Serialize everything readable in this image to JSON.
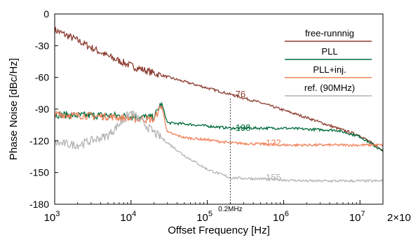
{
  "chart_data": {
    "type": "line",
    "xlabel": "Offset Frequency [Hz]",
    "ylabel": "Phase Noise [dBc/Hz]",
    "x_scale": "log",
    "xlim": [
      1000,
      20000000
    ],
    "ylim": [
      -180,
      0
    ],
    "x_ticks": [
      {
        "value": 1000,
        "base": "10",
        "exp": "3"
      },
      {
        "value": 10000,
        "base": "10",
        "exp": "4"
      },
      {
        "value": 100000,
        "base": "10",
        "exp": "5"
      },
      {
        "value": 1000000,
        "base": "10",
        "exp": "6"
      },
      {
        "value": 10000000,
        "base": "10",
        "exp": "7"
      },
      {
        "value": 20000000,
        "base": "2×10",
        "exp": "7"
      }
    ],
    "y_ticks": [
      0,
      -30,
      -60,
      -90,
      -120,
      -150,
      -180
    ],
    "y_tick_labels": [
      "0",
      "-30",
      "-60",
      "-90",
      "-120",
      "-150",
      "-180"
    ],
    "grid": false,
    "legend_position": "top-right",
    "marker": {
      "x": 200000,
      "label": "0.2MHz"
    },
    "series": [
      {
        "name": "free-runnnig",
        "color": "#8b3a2e",
        "points": [
          [
            1000,
            -15
          ],
          [
            2000,
            -25
          ],
          [
            5000,
            -40
          ],
          [
            10000,
            -49
          ],
          [
            20000,
            -56
          ],
          [
            50000,
            -64
          ],
          [
            100000,
            -70
          ],
          [
            200000,
            -76
          ],
          [
            500000,
            -84
          ],
          [
            1000000,
            -91
          ],
          [
            2000000,
            -98
          ],
          [
            5000000,
            -108
          ],
          [
            10000000,
            -115
          ],
          [
            20000000,
            -129
          ]
        ],
        "annotation": {
          "x": 200000,
          "y": -76,
          "text": "-76"
        }
      },
      {
        "name": "PLL",
        "color": "#006b3c",
        "points": [
          [
            1000,
            -95
          ],
          [
            2000,
            -96
          ],
          [
            5000,
            -96
          ],
          [
            10000,
            -97
          ],
          [
            20000,
            -98
          ],
          [
            25000,
            -84
          ],
          [
            30000,
            -103
          ],
          [
            50000,
            -104
          ],
          [
            100000,
            -106
          ],
          [
            200000,
            -108
          ],
          [
            500000,
            -108
          ],
          [
            1000000,
            -108
          ],
          [
            2000000,
            -109
          ],
          [
            5000000,
            -110
          ],
          [
            10000000,
            -116
          ],
          [
            20000000,
            -130
          ]
        ],
        "annotation": {
          "x": 200000,
          "y": -108,
          "text": "-108"
        }
      },
      {
        "name": "PLL+inj.",
        "color": "#f0825a",
        "points": [
          [
            1000,
            -95
          ],
          [
            2000,
            -96
          ],
          [
            5000,
            -97
          ],
          [
            10000,
            -99
          ],
          [
            20000,
            -100
          ],
          [
            25000,
            -86
          ],
          [
            30000,
            -112
          ],
          [
            50000,
            -117
          ],
          [
            100000,
            -119
          ],
          [
            200000,
            -122
          ],
          [
            500000,
            -123
          ],
          [
            1000000,
            -124
          ],
          [
            2000000,
            -124
          ],
          [
            5000000,
            -124
          ],
          [
            10000000,
            -124
          ],
          [
            20000000,
            -124
          ]
        ],
        "annotation": {
          "x": 500000,
          "y": -122,
          "text": "-122"
        }
      },
      {
        "name": "ref. (90MHz)",
        "color": "#b4b4b4",
        "points": [
          [
            1000,
            -122
          ],
          [
            2000,
            -124
          ],
          [
            5000,
            -115
          ],
          [
            10000,
            -93
          ],
          [
            20000,
            -112
          ],
          [
            50000,
            -134
          ],
          [
            100000,
            -147
          ],
          [
            200000,
            -155
          ],
          [
            500000,
            -156
          ],
          [
            1000000,
            -157
          ],
          [
            2000000,
            -158
          ],
          [
            5000000,
            -158
          ],
          [
            10000000,
            -158
          ],
          [
            20000000,
            -158
          ]
        ],
        "annotation": {
          "x": 500000,
          "y": -155,
          "text": "-155"
        }
      }
    ]
  }
}
